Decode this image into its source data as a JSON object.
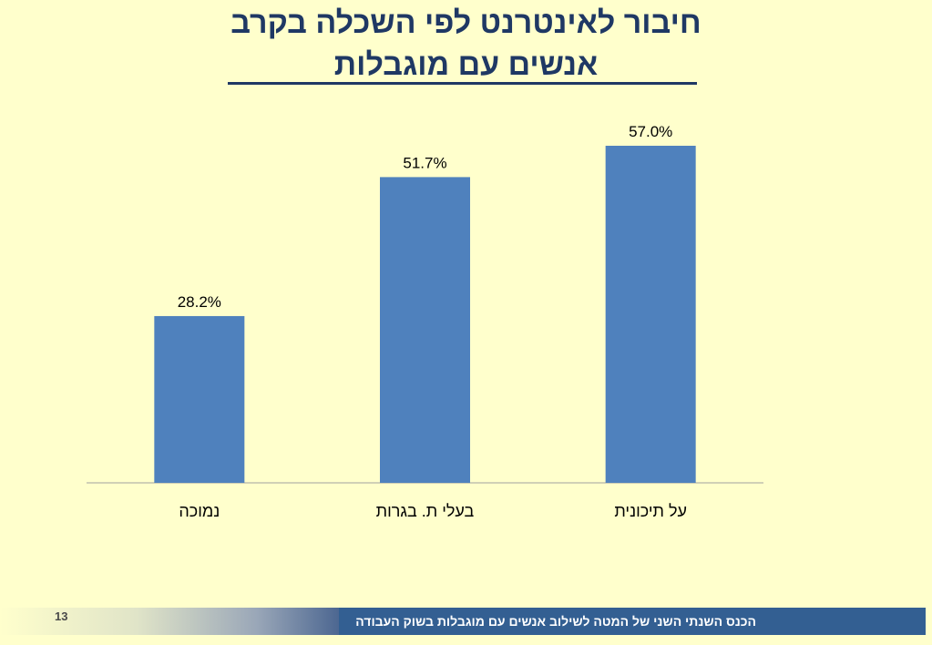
{
  "slide": {
    "title_line1": "חיבור לאינטרנט לפי השכלה בקרב",
    "title_line2": "אנשים עם מוגבלות",
    "footer_text": "הכנס השנתי השני של המטה לשילוב אנשים עם מוגבלות בשוק העבודה",
    "page_number": "13",
    "colors": {
      "bar": "#4f81bd",
      "title": "#1f3864",
      "background": "#ffffcc",
      "footer": "#335f92"
    }
  },
  "chart_data": {
    "type": "bar",
    "categories": [
      "נמוכה",
      "בעלי ת. בגרות",
      "על תיכונית"
    ],
    "values": [
      28.2,
      51.7,
      57.0
    ],
    "data_labels": [
      "28.2%",
      "51.7%",
      "57.0%"
    ],
    "unit": "%",
    "ylim": [
      0,
      60
    ],
    "grid": false,
    "legend": "none"
  }
}
